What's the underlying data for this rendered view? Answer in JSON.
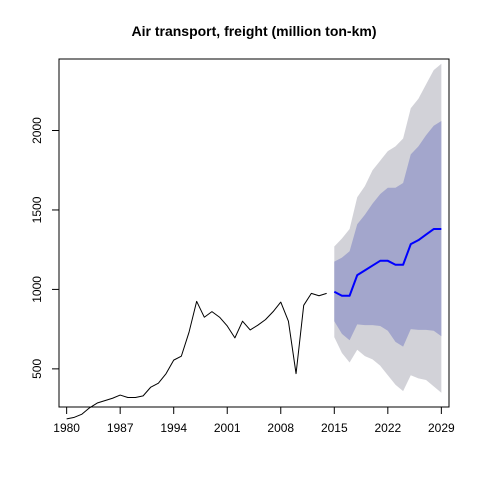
{
  "chart_data": {
    "type": "line",
    "title": "Air transport, freight (million ton-km)",
    "xlabel": "",
    "ylabel": "",
    "xlim": [
      1979,
      2030
    ],
    "ylim": [
      260,
      2450
    ],
    "x_ticks": [
      "1980",
      "1987",
      "1994",
      "2001",
      "2008",
      "2015",
      "2022",
      "2029"
    ],
    "y_ticks": [
      "500",
      "1000",
      "1500",
      "2000"
    ],
    "grid": false,
    "legend": "none",
    "colors": {
      "history": "#000000",
      "forecast": "#0000ff",
      "band_outer": "#d2d2d8",
      "band_inner": "#a3a6cc"
    },
    "series": [
      {
        "role": "history",
        "x": [
          1980,
          1981,
          1982,
          1983,
          1984,
          1985,
          1986,
          1987,
          1988,
          1989,
          1990,
          1991,
          1992,
          1993,
          1994,
          1995,
          1996,
          1997,
          1998,
          1999,
          2000,
          2001,
          2002,
          2003,
          2004,
          2005,
          2006,
          2007,
          2008,
          2009,
          2010,
          2011,
          2012,
          2013,
          2014
        ],
        "values": [
          185,
          195,
          215,
          255,
          285,
          300,
          315,
          335,
          320,
          320,
          330,
          385,
          410,
          470,
          555,
          580,
          730,
          925,
          825,
          860,
          825,
          770,
          695,
          800,
          745,
          775,
          810,
          860,
          920,
          800,
          470,
          900,
          975,
          960,
          975
        ]
      },
      {
        "role": "forecast",
        "x": [
          2015,
          2016,
          2017,
          2018,
          2019,
          2020,
          2021,
          2022,
          2023,
          2024,
          2025,
          2026,
          2027,
          2028,
          2029
        ],
        "values": [
          985,
          960,
          960,
          1090,
          1120,
          1150,
          1180,
          1180,
          1155,
          1155,
          1285,
          1310,
          1345,
          1380,
          1380
        ]
      }
    ],
    "interval_80": {
      "x": [
        2015,
        2016,
        2017,
        2018,
        2019,
        2020,
        2021,
        2022,
        2023,
        2024,
        2025,
        2026,
        2027,
        2028,
        2029
      ],
      "lower": [
        800,
        720,
        680,
        780,
        775,
        775,
        770,
        740,
        670,
        640,
        750,
        745,
        745,
        740,
        705
      ],
      "upper": [
        1175,
        1200,
        1240,
        1410,
        1470,
        1540,
        1600,
        1640,
        1640,
        1670,
        1850,
        1900,
        1970,
        2030,
        2060
      ]
    },
    "interval_95": {
      "x": [
        2015,
        2016,
        2017,
        2018,
        2019,
        2020,
        2021,
        2022,
        2023,
        2024,
        2025,
        2026,
        2027,
        2028,
        2029
      ],
      "lower": [
        700,
        600,
        540,
        620,
        580,
        560,
        520,
        460,
        400,
        360,
        460,
        440,
        430,
        390,
        350
      ],
      "upper": [
        1270,
        1320,
        1380,
        1580,
        1650,
        1750,
        1810,
        1870,
        1900,
        1950,
        2140,
        2200,
        2290,
        2380,
        2420
      ]
    }
  }
}
